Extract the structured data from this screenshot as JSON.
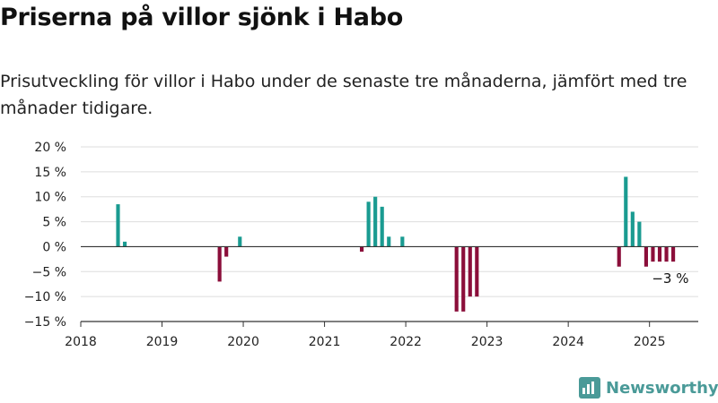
{
  "header": {
    "title": "Priserna på villor sjönk i Habo",
    "subtitle": "Prisutveckling för villor i Habo under de senaste tre månaderna, jämfört med tre månader tidigare."
  },
  "brand": {
    "name": "Newsworthy",
    "icon": "bar-chart-logo-icon",
    "color": "#4a9a98"
  },
  "chart_data": {
    "type": "bar",
    "title": "",
    "xlabel": "",
    "ylabel": "",
    "ylim": [
      -15,
      20
    ],
    "xlim": [
      2018.0,
      2025.6
    ],
    "grid": true,
    "legend": "none",
    "yticks": [
      20,
      15,
      10,
      5,
      0,
      -5,
      -10,
      -15
    ],
    "ytick_labels": [
      "20 %",
      "15 %",
      "10 %",
      "5 %",
      "0 %",
      "−5 %",
      "−10 %",
      "−15 %"
    ],
    "xticks": [
      "2018",
      "2019",
      "2020",
      "2021",
      "2022",
      "2023",
      "2024",
      "2025"
    ],
    "colors": {
      "positive": "#1a9b91",
      "negative": "#8b0e3a",
      "grid": "#dddddd",
      "axis": "#333333"
    },
    "x": [
      "2018-06",
      "2018-07",
      "2019-09",
      "2019-10",
      "2019-12",
      "2021-06",
      "2021-07",
      "2021-08",
      "2021-09",
      "2021-10",
      "2021-12",
      "2022-08",
      "2022-09",
      "2022-10",
      "2022-11",
      "2024-08",
      "2024-09",
      "2024-10",
      "2024-11",
      "2024-12",
      "2025-01",
      "2025-02",
      "2025-03",
      "2025-04"
    ],
    "values": [
      8.5,
      1,
      -7,
      -2,
      2,
      -1,
      9,
      10,
      8,
      2,
      2,
      -13,
      -13,
      -10,
      -10,
      -4,
      14,
      7,
      5,
      -4,
      -3,
      -3,
      -3,
      -3
    ],
    "annotations": [
      {
        "text": "−3 %",
        "x": "2025-04",
        "y": -3
      }
    ]
  }
}
